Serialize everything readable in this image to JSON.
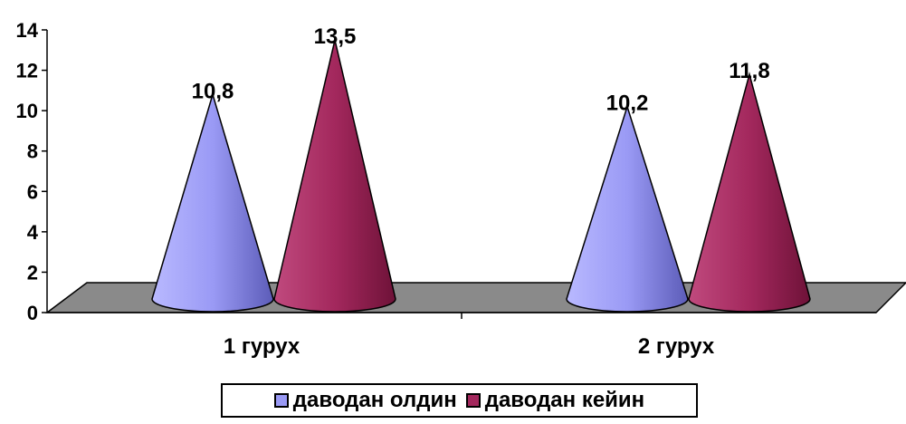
{
  "chart_data": {
    "type": "bar",
    "style": "3d-cone",
    "categories": [
      "1 гурух",
      "2 гурух"
    ],
    "series": [
      {
        "name": "даводан олдин",
        "values": [
          10.8,
          10.2
        ],
        "color": "#9a9af5",
        "value_labels": [
          "10,8",
          "10,2"
        ]
      },
      {
        "name": "даводан кейин",
        "values": [
          13.5,
          11.8
        ],
        "color": "#a3285d",
        "value_labels": [
          "13,5",
          "11,8"
        ]
      }
    ],
    "title": "",
    "xlabel": "",
    "ylabel": "",
    "ylim": [
      0,
      14
    ],
    "yticks": [
      "0",
      "2",
      "4",
      "6",
      "8",
      "10",
      "12",
      "14"
    ],
    "floor_color": "#8a8a8a",
    "grid": false,
    "legend_position": "bottom"
  }
}
